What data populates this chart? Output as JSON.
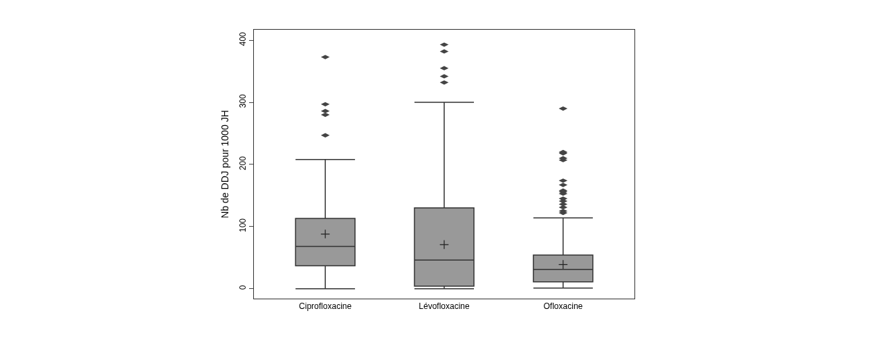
{
  "chart_data": {
    "type": "box",
    "ylabel": "Nb de DDJ pour 1000 JH",
    "categories": [
      "Ciprofloxacine",
      "Lévofloxacine",
      "Ofloxacine"
    ],
    "boxes": [
      {
        "low": 0,
        "q1": 37,
        "median": 68,
        "q3": 113,
        "high": 208,
        "mean": 88,
        "outliers": [
          247,
          280,
          286,
          297,
          373
        ]
      },
      {
        "low": 0,
        "q1": 4,
        "median": 46,
        "q3": 130,
        "high": 300,
        "mean": 71,
        "outliers": [
          332,
          342,
          355,
          382,
          393
        ]
      },
      {
        "low": 1,
        "q1": 11,
        "median": 31,
        "q3": 54,
        "high": 114,
        "mean": 39,
        "outliers": [
          122,
          125,
          131,
          136,
          141,
          145,
          153,
          156,
          158,
          167,
          174,
          207,
          210,
          218,
          220,
          290
        ]
      }
    ],
    "color": "#999999",
    "ylim": [
      -16,
      417
    ],
    "yticks": [
      0,
      100,
      200,
      300,
      400
    ]
  }
}
